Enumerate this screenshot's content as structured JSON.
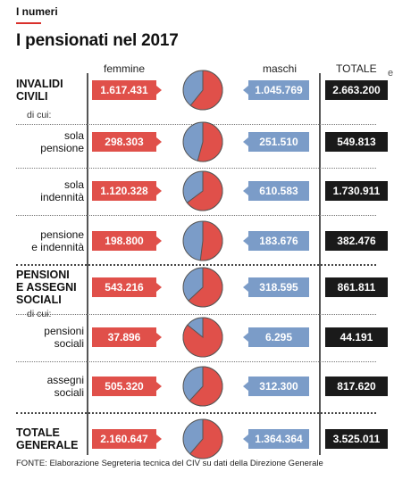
{
  "header": {
    "kicker": "I numeri",
    "title": "I pensionati nel 2017",
    "stray_char": "e"
  },
  "columns": {
    "female": "femmine",
    "male": "maschi",
    "total": "TOTALE"
  },
  "colors": {
    "female": "#e0504a",
    "male": "#7b9cc8",
    "total": "#1a1a1a"
  },
  "rows": [
    {
      "label": "INVALIDI CIVILI",
      "style": "bold",
      "female": "1.617.431",
      "male": "1.045.769",
      "total": "2.663.200"
    },
    {
      "label": "sola pensione",
      "style": "sub",
      "female": "298.303",
      "male": "251.510",
      "total": "549.813"
    },
    {
      "label": "sola indennità",
      "style": "sub",
      "female": "1.120.328",
      "male": "610.583",
      "total": "1.730.911"
    },
    {
      "label": "pensione e indennità",
      "style": "sub",
      "female": "198.800",
      "male": "183.676",
      "total": "382.476"
    },
    {
      "label": "PENSIONI E ASSEGNI SOCIALI",
      "style": "bold",
      "female": "543.216",
      "male": "318.595",
      "total": "861.811"
    },
    {
      "label": "pensioni sociali",
      "style": "sub",
      "female": "37.896",
      "male": "6.295",
      "total": "44.191"
    },
    {
      "label": "assegni sociali",
      "style": "sub",
      "female": "505.320",
      "male": "312.300",
      "total": "817.620"
    },
    {
      "label": "TOTALE GENERALE",
      "style": "bold",
      "female": "2.160.647",
      "male": "1.364.364",
      "total": "3.525.011"
    }
  ],
  "dicui": [
    "di cui:",
    "di cui:"
  ],
  "source": "FONTE: Elaborazione Segreteria tecnica del CIV su dati della Direzione Generale",
  "chart_data": {
    "type": "pie",
    "title": "I pensionati nel 2017",
    "categories": [
      "INVALIDI CIVILI",
      "sola pensione",
      "sola indennità",
      "pensione e indennità",
      "PENSIONI E ASSEGNI SOCIALI",
      "pensioni sociali",
      "assegni sociali",
      "TOTALE GENERALE"
    ],
    "series": [
      {
        "name": "femmine",
        "values": [
          1617431,
          298303,
          1120328,
          198800,
          543216,
          37896,
          505320,
          2160647
        ]
      },
      {
        "name": "maschi",
        "values": [
          1045769,
          251510,
          610583,
          183676,
          318595,
          6295,
          312300,
          1364364
        ]
      },
      {
        "name": "TOTALE",
        "values": [
          2663200,
          549813,
          1730911,
          382476,
          861811,
          44191,
          817620,
          3525011
        ]
      }
    ]
  }
}
